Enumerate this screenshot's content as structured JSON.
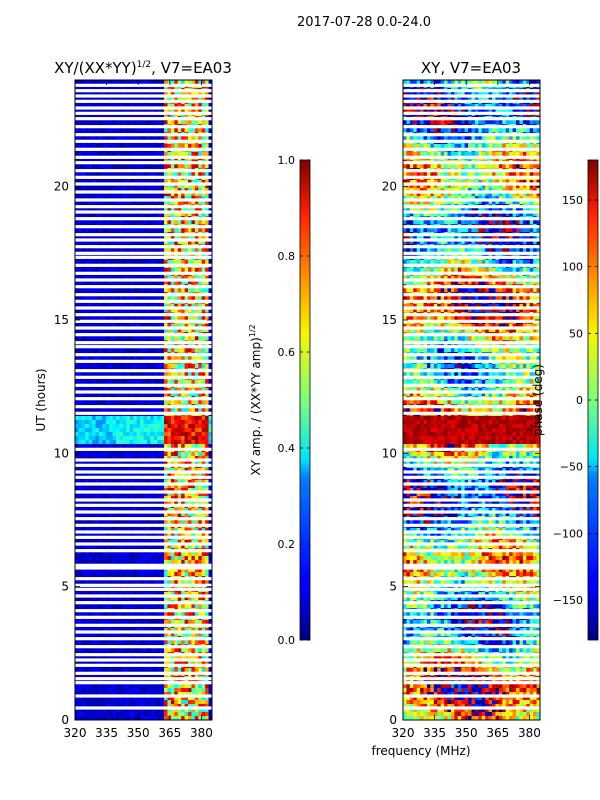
{
  "figure": {
    "suptitle": "2017-07-28 0.0-24.0"
  },
  "chart_data": [
    {
      "type": "heatmap",
      "title_main": "XY/(XX*YY)",
      "title_sup": "1/2",
      "title_tail": ", V7=EA03",
      "xlabel": "",
      "ylabel": "UT (hours)",
      "x_ticks": [
        "320",
        "335",
        "350",
        "365",
        "380"
      ],
      "x_tick_values": [
        320,
        335,
        350,
        365,
        380
      ],
      "y_ticks": [
        "0",
        "5",
        "10",
        "15",
        "20"
      ],
      "y_tick_values": [
        0,
        5,
        10,
        15,
        20
      ],
      "xlim": [
        320,
        385
      ],
      "ylim": [
        0,
        24
      ],
      "colorbar": {
        "label_main": "XY amp. / (XX*YY amp)",
        "label_sup": "1/2",
        "ticks": [
          "0.0",
          "0.2",
          "0.4",
          "0.6",
          "0.8",
          "1.0"
        ],
        "tick_values": [
          0.0,
          0.2,
          0.4,
          0.6,
          0.8,
          1.0
        ],
        "range": [
          0.0,
          1.0
        ],
        "colormap": "jet"
      },
      "bright_band_mhz": [
        362,
        383
      ],
      "high_amplitude_ut_band": [
        10.3,
        11.4
      ]
    },
    {
      "type": "heatmap",
      "title": "XY, V7=EA03",
      "xlabel": "frequency (MHz)",
      "ylabel": "",
      "x_ticks": [
        "320",
        "335",
        "350",
        "365",
        "380"
      ],
      "x_tick_values": [
        320,
        335,
        350,
        365,
        380
      ],
      "y_ticks": [
        "0",
        "5",
        "10",
        "15",
        "20"
      ],
      "y_tick_values": [
        0,
        5,
        10,
        15,
        20
      ],
      "xlim": [
        320,
        385
      ],
      "ylim": [
        0,
        24
      ],
      "colorbar": {
        "label": "phase (deg)",
        "ticks": [
          "−150",
          "−100",
          "−50",
          "0",
          "50",
          "100",
          "150"
        ],
        "tick_values": [
          -150,
          -100,
          -50,
          0,
          50,
          100,
          150
        ],
        "range": [
          -180,
          180
        ],
        "colormap": "jet"
      }
    }
  ],
  "flagged_gaps_ut": [
    0.45,
    0.9,
    1.4,
    1.55,
    1.75,
    2.05,
    2.25,
    2.45,
    2.75,
    3.05,
    3.3,
    3.55,
    3.85,
    4.1,
    4.4,
    4.65,
    4.9,
    5.05,
    5.3,
    5.7,
    5.8,
    6.35,
    6.6,
    6.85,
    7.05,
    7.3,
    7.55,
    7.8,
    8.05,
    8.25,
    8.55,
    8.85,
    9.1,
    9.3,
    9.55,
    9.75,
    10.15,
    11.5,
    11.75,
    12.05,
    12.3,
    12.55,
    12.85,
    13.1,
    13.45,
    13.7,
    14.0,
    14.15,
    14.45,
    14.7,
    14.95,
    15.2,
    15.45,
    15.7,
    15.95,
    16.25,
    16.5,
    16.75,
    17.05,
    17.35,
    17.5,
    17.75,
    18.0,
    18.2,
    18.5,
    18.8,
    19.05,
    19.25,
    19.5,
    19.8,
    20.1,
    20.35,
    20.6,
    20.9,
    21.1,
    21.4,
    21.7,
    21.95,
    22.25,
    22.55,
    22.75,
    22.95,
    23.2,
    23.4,
    23.6,
    23.8
  ]
}
